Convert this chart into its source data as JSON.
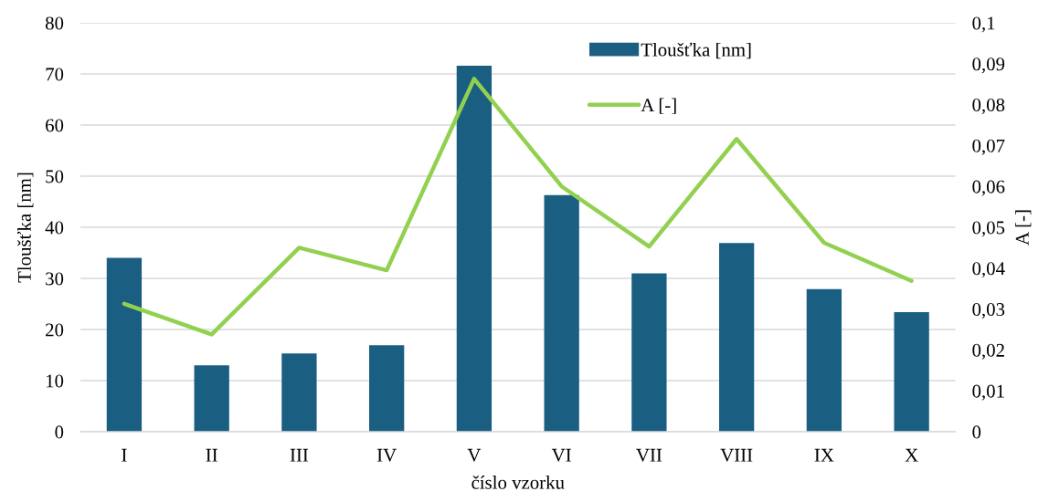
{
  "chart_data": {
    "type": "bar",
    "xlabel": "číslo vzorku",
    "ylabel": "Tloušťka [nm]",
    "y2label": "A [-]",
    "categories": [
      "I",
      "II",
      "III",
      "IV",
      "V",
      "VI",
      "VII",
      "VIII",
      "IX",
      "X"
    ],
    "series": [
      {
        "name": "Tloušťka [nm]",
        "color": "#1a5e82",
        "values": [
          34,
          13,
          15.3,
          16.9,
          71.6,
          46.3,
          31,
          36.9,
          27.9,
          23.4
        ]
      },
      {
        "name": "A [-]",
        "type": "line",
        "axis": "y2",
        "color": "#92d050",
        "values": [
          0.0313,
          0.0238,
          0.045,
          0.0395,
          0.0863,
          0.06,
          0.0453,
          0.0716,
          0.0462,
          0.0369
        ]
      }
    ],
    "ylim": [
      0,
      80
    ],
    "yticks": [
      0,
      10,
      20,
      30,
      40,
      50,
      60,
      70,
      80
    ],
    "y2lim": [
      0,
      0.1
    ],
    "y2ticks": [
      0,
      {
        "value": 0.01,
        "label": "0,01"
      },
      {
        "value": 0.02,
        "label": "0,02"
      },
      {
        "value": 0.03,
        "label": "0,03"
      },
      {
        "value": 0.04,
        "label": "0,04"
      },
      {
        "value": 0.05,
        "label": "0,05"
      },
      {
        "value": 0.06,
        "label": "0,06"
      },
      {
        "value": 0.07,
        "label": "0,07"
      },
      {
        "value": 0.08,
        "label": "0,08"
      },
      {
        "value": 0.09,
        "label": "0,09"
      },
      {
        "value": 0.1,
        "label": "0,1"
      }
    ],
    "grid": "y",
    "legend": "top"
  }
}
